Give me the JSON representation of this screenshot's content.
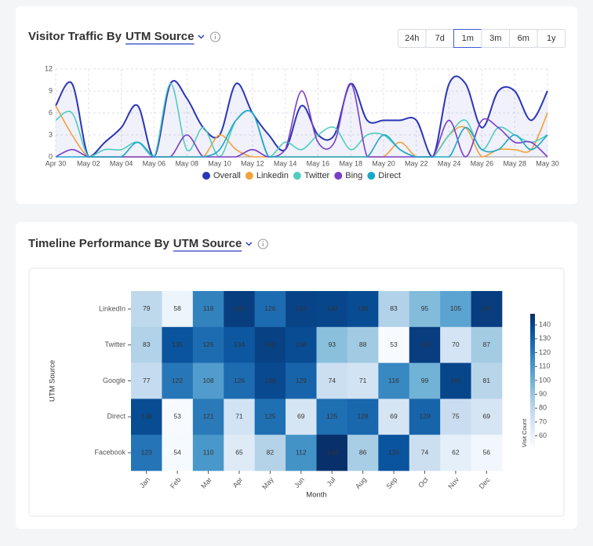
{
  "ui": {
    "range_buttons": [
      "24h",
      "7d",
      "1m",
      "3m",
      "6m",
      "1y"
    ],
    "selected_index": 2
  },
  "chart_data": [
    {
      "type": "line",
      "title": "Visitor Traffic By",
      "title_link": "UTM Source",
      "categories": [
        "Apr 30",
        null,
        "May 02",
        null,
        "May 04",
        null,
        "May 06",
        null,
        "May 08",
        null,
        "May 10",
        null,
        "May 12",
        null,
        "May 14",
        null,
        "May 16",
        null,
        "May 18",
        null,
        "May 20",
        null,
        "May 22",
        null,
        "May 24",
        null,
        "May 26",
        null,
        "May 28",
        null,
        "May 30"
      ],
      "series": [
        {
          "name": "Overall",
          "color": "#2b36b5",
          "values": [
            7,
            10,
            0,
            2,
            4,
            7,
            0,
            10,
            8,
            4,
            3,
            10,
            6,
            3,
            1,
            7,
            3,
            3,
            10,
            5,
            5,
            5,
            5,
            0,
            10,
            10,
            4,
            9,
            9,
            5,
            9
          ]
        },
        {
          "name": "Linkedin",
          "color": "#f2a23c",
          "values": [
            7,
            3,
            0,
            0,
            0,
            0,
            0,
            0,
            0,
            0,
            3,
            1,
            0,
            0,
            0,
            0,
            0,
            0,
            0,
            0,
            0,
            2,
            0,
            0,
            3,
            4,
            0,
            1,
            1,
            1,
            6
          ]
        },
        {
          "name": "Twitter",
          "color": "#4fcdbf",
          "values": [
            5,
            6,
            0,
            1,
            1,
            2,
            0,
            10,
            1,
            4,
            0,
            5,
            6,
            0,
            2,
            1,
            3,
            4,
            1,
            3,
            3,
            1,
            0,
            0,
            3,
            5,
            1,
            4,
            3,
            2,
            3
          ]
        },
        {
          "name": "Bing",
          "color": "#7a3ec6",
          "values": [
            0,
            1,
            0,
            0,
            0,
            0,
            0,
            0,
            3,
            0,
            0,
            0,
            1,
            0,
            1,
            9,
            2,
            2,
            10,
            0,
            0,
            0,
            0,
            0,
            5,
            0,
            5,
            4,
            2,
            2,
            0
          ]
        },
        {
          "name": "Direct",
          "color": "#1ea7c9",
          "values": [
            0,
            0,
            0,
            0,
            0,
            2,
            0,
            0,
            0,
            0,
            1,
            5,
            6,
            0,
            0,
            0,
            0,
            0,
            0,
            0,
            3,
            1,
            0,
            0,
            0,
            4,
            1,
            1,
            3,
            1,
            3
          ]
        }
      ],
      "ylim": [
        0,
        12
      ],
      "yticks": [
        0,
        3,
        6,
        9,
        12
      ],
      "grid": true,
      "legend": "bottom"
    },
    {
      "type": "heatmap",
      "title": "Timeline Performance By",
      "title_link": "UTM Source",
      "x_label": "Month",
      "y_label": "UTM Source",
      "categories": [
        "Jan",
        "Feb",
        "Mar",
        "Apr",
        "May",
        "Jun",
        "Jul",
        "Aug",
        "Sep",
        "Oct",
        "Nov",
        "Dec"
      ],
      "rows": [
        "LinkedIn",
        "Twitter",
        "Google",
        "Direct",
        "Facebook"
      ],
      "values": [
        [
          79,
          58,
          118,
          143,
          126,
          141,
          140,
          138,
          83,
          95,
          105,
          143
        ],
        [
          83,
          135,
          126,
          134,
          142,
          138,
          93,
          88,
          53,
          143,
          70,
          87
        ],
        [
          77,
          122,
          108,
          126,
          139,
          129,
          74,
          71,
          116,
          99,
          140,
          81
        ],
        [
          138,
          53,
          121,
          71,
          125,
          69,
          125,
          128,
          69,
          129,
          75,
          69
        ],
        [
          123,
          54,
          110,
          65,
          82,
          112,
          148,
          86,
          135,
          74,
          62,
          56
        ]
      ],
      "zlim": [
        53,
        148
      ],
      "colorbar_label": "Visit Count",
      "colorbar_ticks": [
        60,
        70,
        80,
        90,
        100,
        110,
        120,
        130,
        140
      ],
      "colormap": "Blues"
    }
  ]
}
